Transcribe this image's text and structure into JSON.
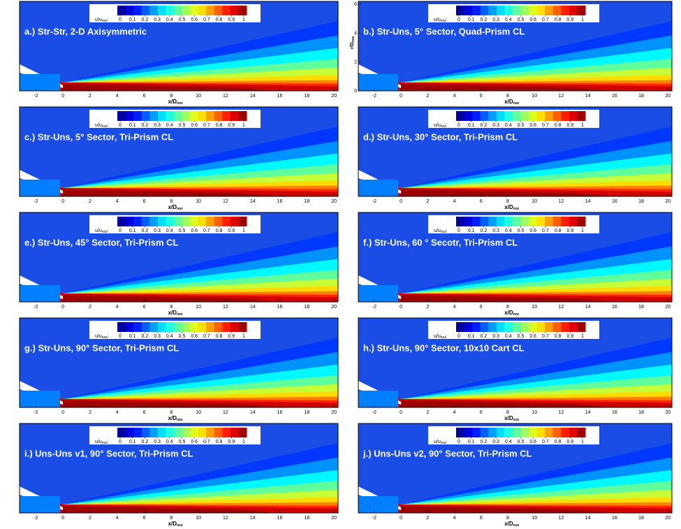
{
  "colorbar": {
    "label": "u/u",
    "label_sub": "noz",
    "label_end": ":",
    "ticks": [
      0,
      0.1,
      0.2,
      0.3,
      0.4,
      0.5,
      0.6,
      0.7,
      0.8,
      0.9,
      1
    ]
  },
  "xlim": [
    -3.2,
    20.3
  ],
  "xticks": [
    -2,
    0,
    2,
    4,
    6,
    8,
    10,
    12,
    14,
    16,
    18,
    20
  ],
  "xlabel": "x/D",
  "xlabel_sub": "noz",
  "panels": [
    {
      "label": "a.) Str-Str, 2-D Axisymmetric"
    },
    {
      "label": "b.) Str-Uns, 5° Sector, Quad-Prism CL",
      "ylim": [
        0,
        6.2
      ],
      "yticks": [
        0,
        2,
        4,
        6
      ],
      "ylabel": "r/D",
      "ylabel_sub": "noz"
    },
    {
      "label": "c.) Str-Uns, 5° Sector, Tri-Prism CL"
    },
    {
      "label": "d.) Str-Uns, 30° Sector, Tri-Prism CL"
    },
    {
      "label": "e.) Str-Uns, 45° Sector, Tri-Prism CL"
    },
    {
      "label": "f.) Str-Uns, 60 ° Secotr, Tri-Prism CL"
    },
    {
      "label": "g.) Str-Uns, 90° Sector, Tri-Prism CL"
    },
    {
      "label": "h.) Str-Uns, 90° Sector, 10x10 Cart CL"
    },
    {
      "label": "i.) Uns-Uns v1, 90° Sector, Tri-Prism CL"
    },
    {
      "label": "j.) Uns-Uns v2, 90° Sector, Tri-Prism CL"
    }
  ]
}
